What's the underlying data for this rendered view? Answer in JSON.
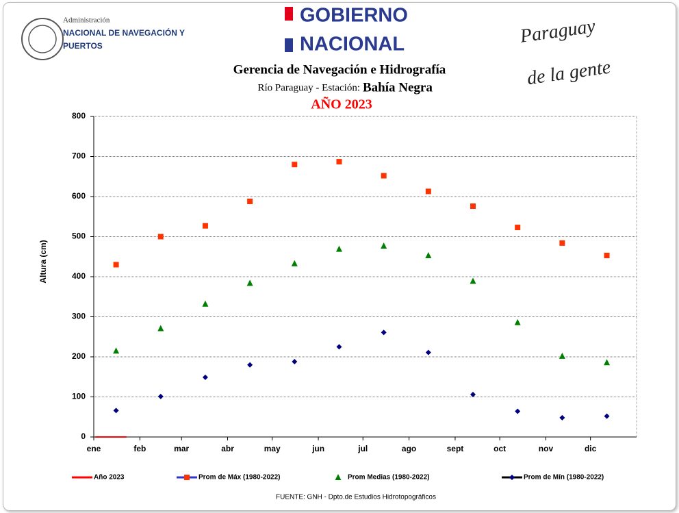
{
  "header": {
    "agency_line1": "Administración",
    "agency_line2": "NACIONAL DE NAVEGACIÓN Y",
    "agency_line3": "PUERTOS",
    "gov_line1": "GOBIERNO",
    "gov_line2": "NACIONAL",
    "slogan_line1": "Paraguay",
    "slogan_line2": "de la gente"
  },
  "chart_data": {
    "type": "scatter",
    "title": "Gerencia de Navegación e Hidrografía",
    "subtitle": "Río Paraguay  -  Estación:",
    "station": "Bahía Negra",
    "year_label": "AÑO 2023",
    "y_label": "Altura (cm)",
    "source": "FUENTE:  GNH  - Dpto.de Estudios Hidrotopográficos",
    "xlim": [
      0,
      365
    ],
    "xticks": [
      {
        "value": 0,
        "label": "ene"
      },
      {
        "value": 31,
        "label": "feb"
      },
      {
        "value": 59,
        "label": "mar"
      },
      {
        "value": 90,
        "label": "abr"
      },
      {
        "value": 120,
        "label": "may"
      },
      {
        "value": 151,
        "label": "jun"
      },
      {
        "value": 181,
        "label": "jul"
      },
      {
        "value": 212,
        "label": "ago"
      },
      {
        "value": 243,
        "label": "sept"
      },
      {
        "value": 273,
        "label": "oct"
      },
      {
        "value": 304,
        "label": "nov"
      },
      {
        "value": 334,
        "label": "dic"
      }
    ],
    "ylim": [
      0,
      800
    ],
    "yticks": [
      0,
      100,
      200,
      300,
      400,
      500,
      600,
      700,
      800
    ],
    "grid": true,
    "series": [
      {
        "name": "Año 2023",
        "color": "#ff0000",
        "marker": "line",
        "x": [
          1,
          22
        ],
        "values": [
          0,
          0
        ]
      },
      {
        "name": "Prom de Máx (1980-2022)",
        "color": "#ff3300",
        "marker": "square",
        "legend_line_color": "#3333cc",
        "x": [
          15,
          45,
          75,
          105,
          135,
          165,
          195,
          225,
          255,
          285,
          315,
          345
        ],
        "values": [
          430,
          500,
          527,
          588,
          680,
          687,
          652,
          613,
          576,
          523,
          484,
          453
        ]
      },
      {
        "name": "Prom Medias (1980-2022)",
        "color": "#008000",
        "marker": "triangle",
        "x": [
          15,
          45,
          75,
          105,
          135,
          165,
          195,
          225,
          255,
          285,
          315,
          345
        ],
        "values": [
          215,
          271,
          332,
          384,
          433,
          469,
          477,
          453,
          389,
          286,
          202,
          186
        ]
      },
      {
        "name": "Prom de Mín  (1980-2022)",
        "color": "#000080",
        "marker": "diamond",
        "legend_line_color": "#000000",
        "x": [
          15,
          45,
          75,
          105,
          135,
          165,
          195,
          225,
          255,
          285,
          315,
          345
        ],
        "values": [
          66,
          101,
          149,
          180,
          188,
          225,
          261,
          211,
          106,
          64,
          48,
          52
        ]
      }
    ]
  }
}
